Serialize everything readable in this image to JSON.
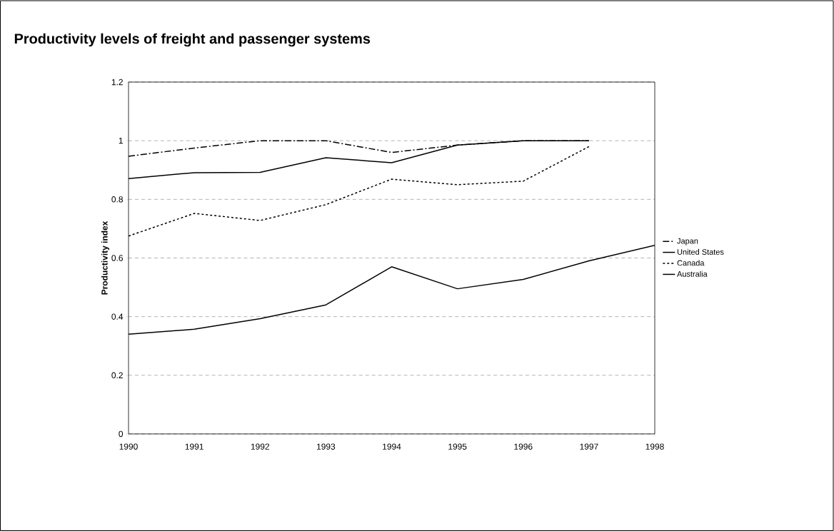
{
  "chart_data": {
    "type": "line",
    "title": "Productivity levels of freight and passenger systems",
    "ylabel": "Productivity index",
    "x": [
      1990,
      1991,
      1992,
      1993,
      1994,
      1995,
      1996,
      1997,
      1998
    ],
    "series": [
      {
        "name": "Japan",
        "color": "#000000",
        "line_style": "dashdot",
        "values": [
          0.947,
          0.975,
          1.0,
          1.0,
          0.96,
          0.985,
          1.0,
          1.0,
          null
        ]
      },
      {
        "name": "United States",
        "color": "#000000",
        "line_style": "solid",
        "values": [
          0.871,
          0.891,
          0.892,
          0.942,
          0.925,
          0.985,
          1.0,
          1.0,
          null
        ]
      },
      {
        "name": "Canada",
        "color": "#000000",
        "line_style": "dotted",
        "values": [
          0.675,
          0.752,
          0.728,
          0.782,
          0.869,
          0.85,
          0.862,
          0.98,
          null
        ]
      },
      {
        "name": "Australia",
        "color": "#000000",
        "line_style": "solid",
        "values": [
          0.34,
          0.357,
          0.393,
          0.44,
          0.57,
          0.495,
          0.527,
          0.59,
          0.643
        ]
      }
    ],
    "xlim": [
      1990,
      1998
    ],
    "xticks": [
      1990,
      1991,
      1992,
      1993,
      1994,
      1995,
      1996,
      1997,
      1998
    ],
    "ylim": [
      0,
      1.2
    ],
    "yticks": [
      0,
      0.2,
      0.4,
      0.6,
      0.8,
      1,
      1.2
    ],
    "grid": "y",
    "legend": "right",
    "marker": "none"
  }
}
